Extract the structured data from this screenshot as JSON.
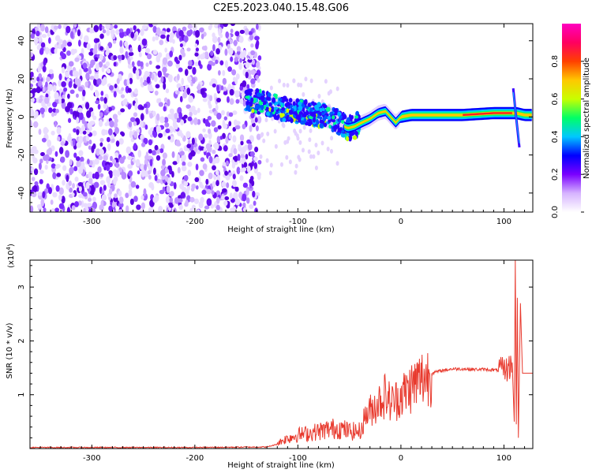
{
  "title": "C2E5.2023.040.15.48.G06",
  "chart_data": [
    {
      "type": "heatmap",
      "title": "C2E5.2023.040.15.48.G06",
      "xlabel": "Height of straight line (km)",
      "ylabel": "Frequency (Hz)",
      "xlim": [
        -360,
        128
      ],
      "ylim": [
        -50,
        49
      ],
      "x_ticks": [
        -300,
        -200,
        -100,
        0,
        100
      ],
      "y_ticks": [
        -40,
        -20,
        0,
        20,
        40
      ],
      "noise_region_x": [
        -360,
        -137
      ],
      "track": [
        {
          "x": -150,
          "y": 9
        },
        {
          "x": -140,
          "y": 8
        },
        {
          "x": -130,
          "y": 7
        },
        {
          "x": -120,
          "y": 5
        },
        {
          "x": -110,
          "y": 4
        },
        {
          "x": -100,
          "y": 3
        },
        {
          "x": -90,
          "y": 2
        },
        {
          "x": -80,
          "y": 1
        },
        {
          "x": -70,
          "y": 0
        },
        {
          "x": -60,
          "y": -3
        },
        {
          "x": -52,
          "y": -6
        },
        {
          "x": -45,
          "y": -5
        },
        {
          "x": -38,
          "y": -3
        },
        {
          "x": -30,
          "y": -1
        },
        {
          "x": -22,
          "y": 2
        },
        {
          "x": -15,
          "y": 3
        },
        {
          "x": -10,
          "y": 0
        },
        {
          "x": -5,
          "y": -3
        },
        {
          "x": 0,
          "y": 0
        },
        {
          "x": 10,
          "y": 1
        },
        {
          "x": 30,
          "y": 1
        },
        {
          "x": 60,
          "y": 1
        },
        {
          "x": 90,
          "y": 2
        },
        {
          "x": 105,
          "y": 2
        },
        {
          "x": 112,
          "y": 2
        },
        {
          "x": 120,
          "y": 1
        },
        {
          "x": 128,
          "y": 1
        }
      ],
      "colorbar": {
        "label": "Normalized spectral amplitude",
        "range": [
          0,
          1
        ],
        "ticks": [
          0.0,
          0.2,
          0.4,
          0.6,
          0.8
        ],
        "tick_labels": [
          "0.0",
          "0.2",
          "0.4",
          "0.6",
          "0.8"
        ],
        "colors": [
          "#ffffff",
          "#d6b3ff",
          "#7a00ff",
          "#0000ff",
          "#00c8ff",
          "#00ff66",
          "#c8ff00",
          "#ffc800",
          "#ff4000",
          "#ff0060",
          "#ff00c0"
        ]
      }
    },
    {
      "type": "line",
      "xlabel": "Height of straight line (km)",
      "ylabel": "SNR (10 * v/v)",
      "y_multiplier": "(x10",
      "y_multiplier_exp": "4",
      "y_multiplier_close": ")",
      "xlim": [
        -360,
        128
      ],
      "ylim": [
        0,
        3.5
      ],
      "x_ticks": [
        -300,
        -200,
        -100,
        0,
        100
      ],
      "y_ticks": [
        1,
        2,
        3
      ],
      "color": "#e83a2e",
      "series": [
        {
          "x": [
            -360,
            -300,
            -200,
            -130,
            -120,
            -110,
            -100,
            -90,
            -80,
            -70,
            -60,
            -50,
            -40,
            -35,
            -30,
            -25,
            -20,
            -15,
            -10,
            -5,
            0,
            5,
            10,
            20,
            30,
            40,
            50,
            60,
            70,
            80,
            90,
            100,
            105,
            108,
            110,
            111,
            112,
            113,
            114,
            116,
            118,
            120,
            128
          ],
          "y": [
            0.02,
            0.02,
            0.02,
            0.03,
            0.08,
            0.15,
            0.2,
            0.22,
            0.25,
            0.28,
            0.3,
            0.25,
            0.25,
            0.6,
            0.7,
            0.8,
            0.9,
            1.0,
            0.85,
            0.9,
            1.0,
            1.05,
            1.15,
            1.3,
            1.4,
            1.45,
            1.48,
            1.48,
            1.47,
            1.47,
            1.46,
            1.45,
            1.5,
            1.6,
            0.5,
            3.5,
            0.45,
            2.8,
            0.2,
            2.7,
            1.4,
            1.4,
            1.4
          ]
        }
      ]
    }
  ]
}
